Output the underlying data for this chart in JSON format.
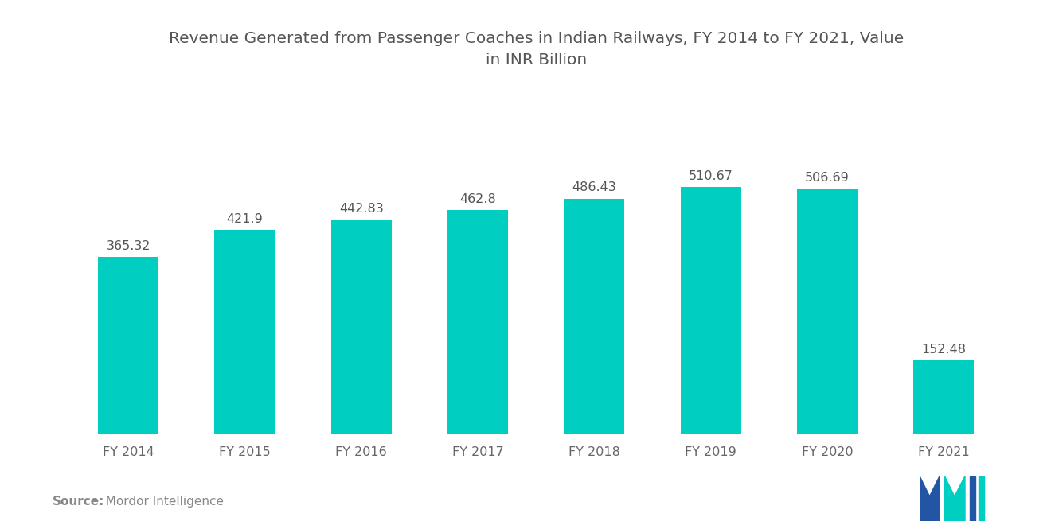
{
  "title": "Revenue Generated from Passenger Coaches in Indian Railways, FY 2014 to FY 2021, Value\nin INR Billion",
  "categories": [
    "FY 2014",
    "FY 2015",
    "FY 2016",
    "FY 2017",
    "FY 2018",
    "FY 2019",
    "FY 2020",
    "FY 2021"
  ],
  "values": [
    365.32,
    421.9,
    442.83,
    462.8,
    486.43,
    510.67,
    506.69,
    152.48
  ],
  "bar_color": "#00CEC0",
  "background_color": "#ffffff",
  "title_color": "#555555",
  "label_color": "#555555",
  "xtick_color": "#666666",
  "source_label_bold": "Source:",
  "source_label_text": "  Mordor Intelligence",
  "source_color": "#888888",
  "title_fontsize": 14.5,
  "value_fontsize": 11.5,
  "xtick_fontsize": 11.5,
  "source_fontsize": 11,
  "ylim": [
    0,
    700
  ],
  "bar_width": 0.52,
  "logo_blue": "#2255A4",
  "logo_teal": "#00CEC0"
}
